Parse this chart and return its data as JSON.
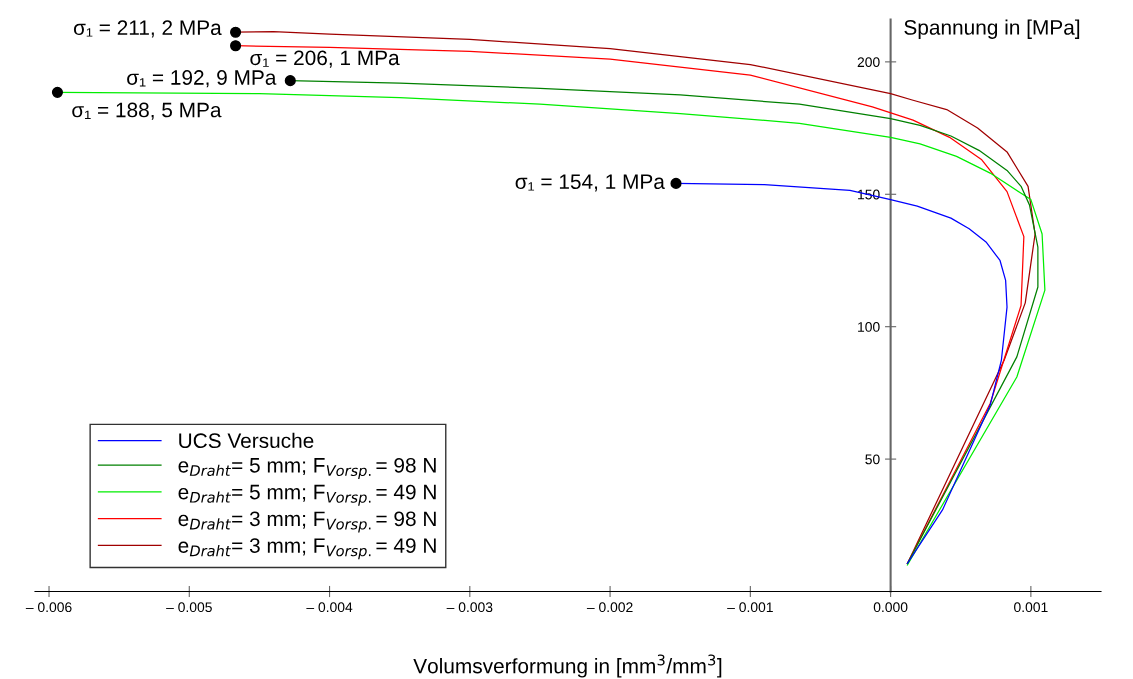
{
  "chart_data": {
    "type": "line",
    "xlabel": "Volumsverformung in [mm$^{3}$/mm$^{3}$]",
    "ylabel": "Spannung in [MPa]",
    "xlim": [
      -0.0061,
      0.0015
    ],
    "ylim": [
      0,
      216
    ],
    "xticks": [
      {
        "value": -0.006,
        "label": "– 0.006"
      },
      {
        "value": -0.005,
        "label": "– 0.005"
      },
      {
        "value": -0.004,
        "label": "– 0.004"
      },
      {
        "value": -0.003,
        "label": "– 0.003"
      },
      {
        "value": -0.002,
        "label": "– 0.002"
      },
      {
        "value": -0.001,
        "label": "– 0.001"
      },
      {
        "value": 0.0,
        "label": "0.000"
      },
      {
        "value": 0.001,
        "label": "0.001"
      }
    ],
    "yticks": [
      50,
      100,
      150,
      200
    ],
    "grid": false,
    "legend": "bottom left",
    "marker": "none",
    "line_style": "solid",
    "series": [
      {
        "name": "UCS Versuche",
        "color": "#0000ff",
        "x": [
          0.00012,
          0.00037,
          0.00071,
          0.00079,
          0.00083,
          0.00082,
          0.00078,
          0.00068,
          0.00056,
          0.00043,
          0.00019,
          0.0,
          -0.00029,
          -0.0009,
          -0.00153
        ],
        "values": [
          10.6,
          30.8,
          70.4,
          87.4,
          107.4,
          117.5,
          125,
          132,
          137,
          141,
          145.5,
          148,
          151.5,
          153.6,
          154.1
        ]
      },
      {
        "name": "e$_{Draht}$= 5 mm; F$_{Vorsp.}$= 98 N",
        "color": "#008000",
        "x": [
          0.00012,
          0.0009,
          0.00105,
          0.00105,
          0.00099,
          0.00093,
          0.00083,
          0.00063,
          0.00043,
          0.00021,
          0.0,
          -0.00065,
          -0.0015,
          -0.0025,
          -0.0035,
          -0.00428
        ],
        "values": [
          10.6,
          88.6,
          115,
          130,
          146,
          153,
          159,
          166.6,
          172,
          176,
          178.6,
          184,
          187.5,
          190,
          192,
          192.9
        ]
      },
      {
        "name": "e$_{Draht}$= 5 mm; F$_{Vorsp.}$= 49 N",
        "color": "#00ee00",
        "x": [
          0.00012,
          0.0009,
          0.0011,
          0.00108,
          0.001,
          0.00071,
          0.00047,
          0.00021,
          0.0,
          -0.00065,
          -0.0015,
          -0.0025,
          -0.0035,
          -0.0045,
          -0.00594
        ],
        "values": [
          10,
          81,
          113.8,
          135,
          148,
          158,
          164.3,
          169,
          171.5,
          176.8,
          180.5,
          184,
          186.5,
          188,
          188.5
        ]
      },
      {
        "name": "e$_{Draht}$= 3 mm; F$_{Vorsp.}$= 98 N",
        "color": "#ff0000",
        "x": [
          0.00012,
          0.00071,
          0.00093,
          0.00095,
          0.00083,
          0.00065,
          0.00042,
          0.00016,
          -0.00013,
          -0.001,
          -0.002,
          -0.003,
          -0.004,
          -0.00467
        ],
        "values": [
          10.6,
          71,
          108,
          134,
          151,
          163,
          171.5,
          178,
          183,
          195,
          201,
          204,
          205.5,
          206.1
        ]
      },
      {
        "name": "e$_{Draht}$= 3 mm; F$_{Vorsp.}$= 49 N",
        "color": "#a00000",
        "x": [
          0.00012,
          0.00081,
          0.00096,
          0.00103,
          0.00098,
          0.00083,
          0.00062,
          0.0004,
          0.00016,
          0.0,
          -0.001,
          -0.002,
          -0.003,
          -0.004,
          -0.0044,
          -0.00467
        ],
        "values": [
          10.6,
          87.4,
          109,
          135,
          153,
          166,
          175,
          182,
          185.5,
          188,
          199,
          205,
          208.5,
          210.5,
          211.4,
          211.2
        ]
      }
    ],
    "annotations": [
      {
        "text": "σ₁ = 211, 2 MPa",
        "x": -0.00467,
        "y": 211.2
      },
      {
        "text": "σ₁ = 206, 1 MPa",
        "x": -0.00467,
        "y": 206.1
      },
      {
        "text": "σ₁ = 192, 9 MPa",
        "x": -0.00428,
        "y": 192.9
      },
      {
        "text": "σ₁ = 188, 5 MPa",
        "x": -0.00594,
        "y": 188.5
      },
      {
        "text": "σ₁ = 154, 1 MPa",
        "x": -0.00153,
        "y": 154.1
      }
    ]
  }
}
